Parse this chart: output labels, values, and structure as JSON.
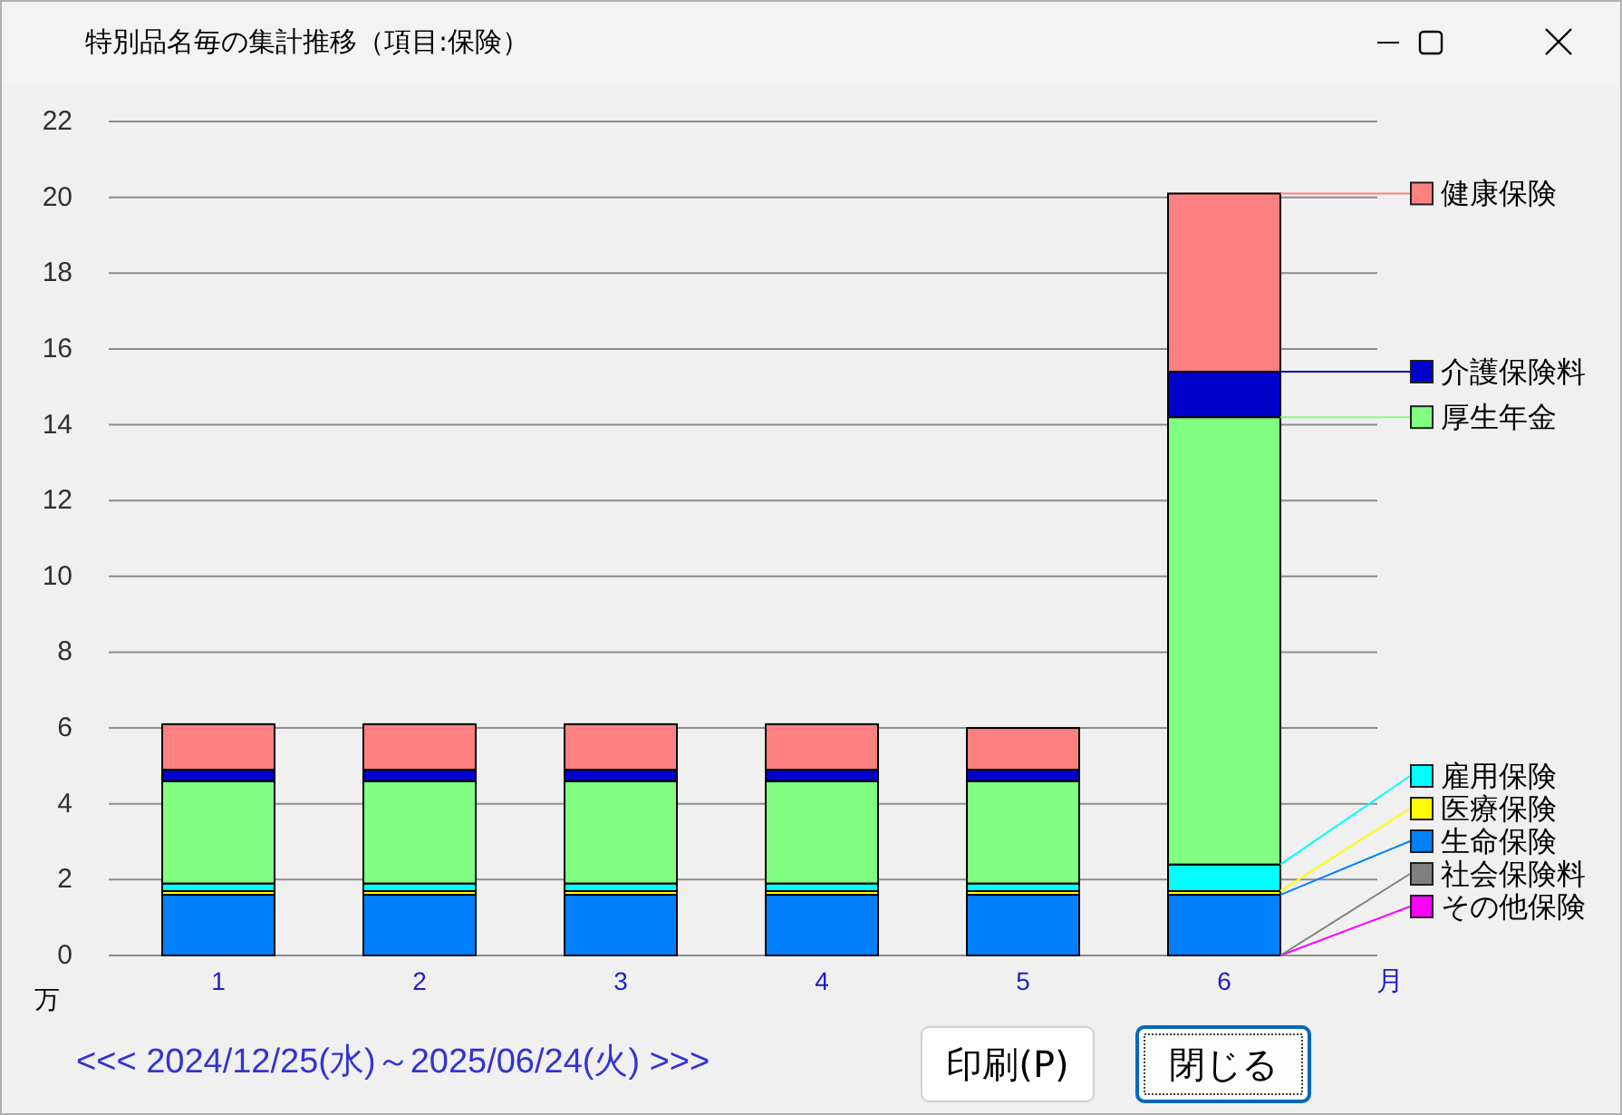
{
  "chart_data": {
    "type": "bar",
    "stacked": true,
    "title": "特別品名毎の集計推移（項目:保険）",
    "xlabel": "月",
    "ylabel": "万",
    "categories": [
      "1",
      "2",
      "3",
      "4",
      "5",
      "6"
    ],
    "ylim": [
      0,
      22
    ],
    "yticks": [
      0,
      2,
      4,
      6,
      8,
      10,
      12,
      14,
      16,
      18,
      20,
      22
    ],
    "grid": "y",
    "legend": "right",
    "series": [
      {
        "name": "その他保険",
        "color": "#ff00ff",
        "values": [
          0,
          0,
          0,
          0,
          0,
          0
        ]
      },
      {
        "name": "社会保険料",
        "color": "#808080",
        "values": [
          0,
          0,
          0,
          0,
          0,
          0
        ]
      },
      {
        "name": "生命保険",
        "color": "#0080ff",
        "values": [
          1.6,
          1.6,
          1.6,
          1.6,
          1.6,
          1.6
        ]
      },
      {
        "name": "医療保険",
        "color": "#ffff00",
        "values": [
          0.1,
          0.1,
          0.1,
          0.1,
          0.1,
          0.1
        ]
      },
      {
        "name": "雇用保険",
        "color": "#00ffff",
        "values": [
          0.2,
          0.2,
          0.2,
          0.2,
          0.2,
          0.7
        ]
      },
      {
        "name": "厚生年金",
        "color": "#80ff80",
        "values": [
          2.7,
          2.7,
          2.7,
          2.7,
          2.7,
          11.8
        ]
      },
      {
        "name": "介護保険料",
        "color": "#0000cc",
        "values": [
          0.3,
          0.3,
          0.3,
          0.3,
          0.3,
          1.2
        ]
      },
      {
        "name": "健康保険",
        "color": "#ff8080",
        "values": [
          1.2,
          1.2,
          1.2,
          1.2,
          1.1,
          4.7
        ]
      }
    ],
    "annotations": [
      "<<< 2024/12/25(水)～2025/06/24(火) >>>",
      "印刷(P)",
      "閉じる"
    ]
  }
}
